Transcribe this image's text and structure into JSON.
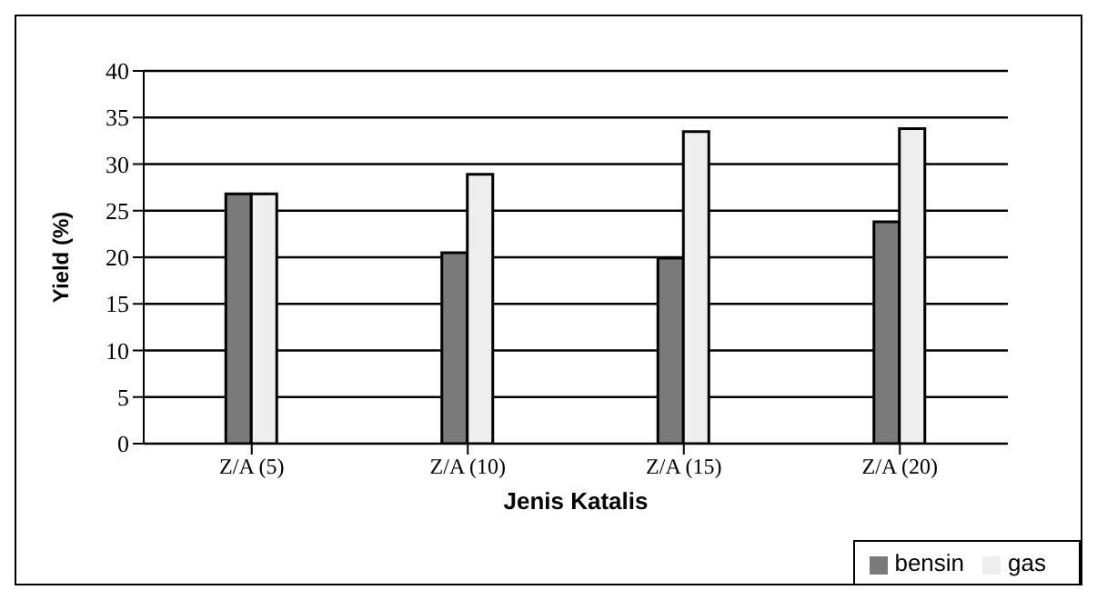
{
  "chart_data": {
    "type": "bar",
    "xlabel": "Jenis Katalis",
    "ylabel": "Yield (%)",
    "categories": [
      "Z/A (5)",
      "Z/A (10)",
      "Z/A (15)",
      "Z/A (20)"
    ],
    "series": [
      {
        "name": "bensin",
        "color": "#7a7a7a",
        "values": [
          26.8,
          20.5,
          19.9,
          23.8
        ]
      },
      {
        "name": "gas",
        "color": "#eeeeee",
        "values": [
          26.8,
          28.9,
          33.5,
          33.8
        ]
      }
    ],
    "ylim": [
      0,
      40
    ],
    "yticks": [
      0,
      5,
      10,
      15,
      20,
      25,
      30,
      35,
      40
    ],
    "grid": "y",
    "legend": "bottom right"
  }
}
